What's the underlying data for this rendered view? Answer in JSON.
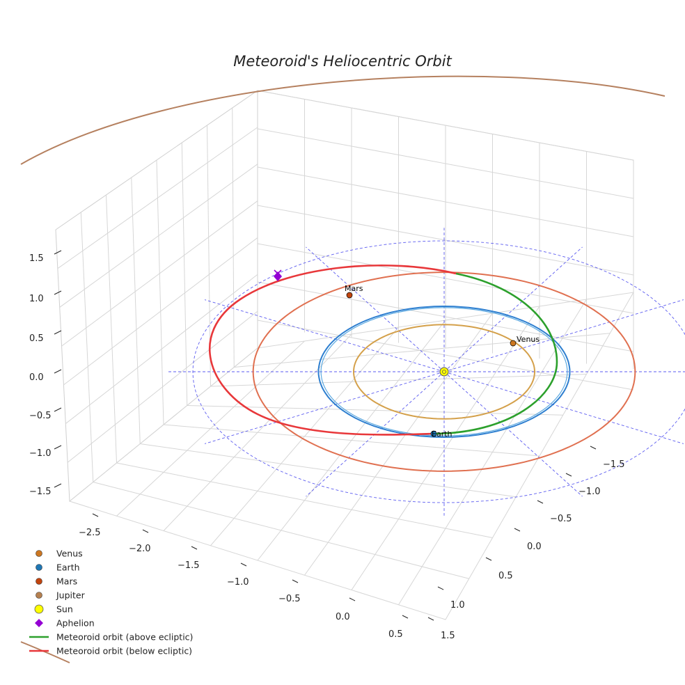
{
  "chart_data": {
    "type": "line",
    "projection": "3d",
    "title": "Meteoroid's Heliocentric Orbit",
    "axes": {
      "x": {
        "ticks": [
          -2.5,
          -2.0,
          -1.5,
          -1.0,
          -0.5,
          0.0,
          0.5
        ],
        "labels": [
          "−2.5",
          "−2.0",
          "−1.5",
          "−1.0",
          "−0.5",
          "0.0",
          "0.5"
        ]
      },
      "y": {
        "ticks": [
          -1.5,
          -1.0,
          -0.5,
          0.0,
          0.5,
          1.0,
          1.5
        ],
        "labels": [
          "−1.5",
          "−1.0",
          "−0.5",
          "0.0",
          "0.5",
          "1.0",
          "1.5"
        ]
      },
      "z": {
        "ticks": [
          -1.5,
          -1.0,
          -0.5,
          0.0,
          0.5,
          1.0,
          1.5
        ],
        "labels": [
          "−1.5",
          "−1.0",
          "−0.5",
          "0.0",
          "0.5",
          "1.0",
          "1.5"
        ]
      }
    },
    "planets": [
      {
        "name": "Venus",
        "orbit_radius_au": 0.72,
        "label": "Venus",
        "color": "#cc7722",
        "orbit_color": "#d4a04a"
      },
      {
        "name": "Earth",
        "orbit_radius_au": 1.0,
        "label": "Earth",
        "color": "#1f77b4",
        "orbit_color": "#2e7fd0"
      },
      {
        "name": "Mars",
        "orbit_radius_au": 1.52,
        "label": "Mars",
        "color": "#c1440e",
        "orbit_color": "#e07050"
      },
      {
        "name": "Jupiter",
        "orbit_radius_au": 5.2,
        "label": "",
        "color": "#b5804f",
        "orbit_color": "#b5805f"
      }
    ],
    "sun": {
      "label": "Sun",
      "color": "#ffff00"
    },
    "aphelion": {
      "label": "Aphelion",
      "color": "#9400d3"
    },
    "meteoroid": {
      "above_label": "Meteoroid orbit (above ecliptic)",
      "above_color": "#2ca02c",
      "below_label": "Meteoroid orbit (below ecliptic)",
      "below_color": "#e8373a"
    },
    "reference_circles_au": [
      1,
      2
    ],
    "legend": [
      {
        "label": "Venus",
        "marker": "circle",
        "color": "#cc7722"
      },
      {
        "label": "Earth",
        "marker": "circle",
        "color": "#1f77b4"
      },
      {
        "label": "Mars",
        "marker": "circle",
        "color": "#c1440e"
      },
      {
        "label": "Jupiter",
        "marker": "circle",
        "color": "#b5804f"
      },
      {
        "label": "Sun",
        "marker": "big-circle",
        "color": "#ffff00"
      },
      {
        "label": "Aphelion",
        "marker": "diamond",
        "color": "#9400d3"
      },
      {
        "label": "Meteoroid orbit (above ecliptic)",
        "marker": "line",
        "color": "#2ca02c"
      },
      {
        "label": "Meteoroid orbit (below ecliptic)",
        "marker": "line",
        "color": "#e8373a"
      }
    ],
    "legend_position": "bottom-left"
  }
}
